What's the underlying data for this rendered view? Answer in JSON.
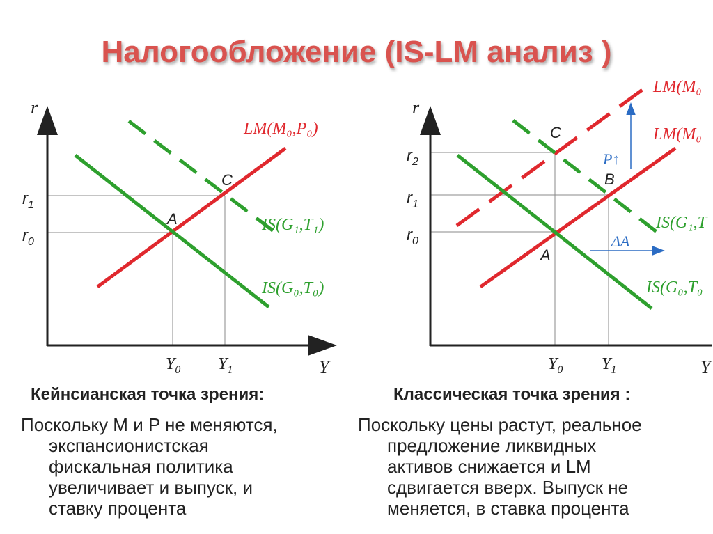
{
  "title": "Налогообложение (IS-LM анализ )",
  "colors": {
    "lm": "#e0282e",
    "is": "#2ea02e",
    "title": "#d9534f",
    "axis": "#222222",
    "grid": "#888888",
    "arrow": "#2b6cc4"
  },
  "left": {
    "y_axis": "r",
    "x_axis": "Y",
    "r_ticks": {
      "r1": "r",
      "r1_sub": "1",
      "r0": "r",
      "r0_sub": "0"
    },
    "y_ticks": {
      "y0": "Y",
      "y0_sub": "0",
      "y1": "Y",
      "y1_sub": "1"
    },
    "lm_label": "LM(M₀,P₀)",
    "is0_label": "IS(G₀,T₀)",
    "is1_label": "IS(G₁,T₁)",
    "point_a": "A",
    "point_c": "C",
    "caption": "Кейнсианская точка зрения:",
    "text_lines": [
      "Поскольку M и P не меняются,",
      "экспансионистская",
      "фискальная политика",
      "увеличивает и выпуск, и",
      "ставку процента"
    ]
  },
  "right": {
    "y_axis": "r",
    "x_axis": "Y",
    "r_ticks": {
      "r2": "r",
      "r2_sub": "2",
      "r1": "r",
      "r1_sub": "1",
      "r0": "r",
      "r0_sub": "0"
    },
    "y_ticks": {
      "y0": "Y",
      "y0_sub": "0",
      "y1": "Y",
      "y1_sub": "1"
    },
    "lm1_label": "LM(M₀",
    "lm0_label": "LM(M₀",
    "is1_label": "IS(G₁,T",
    "is0_label": "IS(G₀,T₀",
    "p_arrow_label": "P↑",
    "delta_label": "ΔA",
    "point_a": "A",
    "point_b": "B",
    "point_c": "C",
    "caption": "Классическая точка зрения :",
    "text_lines": [
      "Поскольку цены растут, реальное",
      "предложение ликвидных",
      "активов снижается и LM",
      "сдвигается вверх. Выпуск не",
      "меняется, в ставка процента"
    ]
  }
}
